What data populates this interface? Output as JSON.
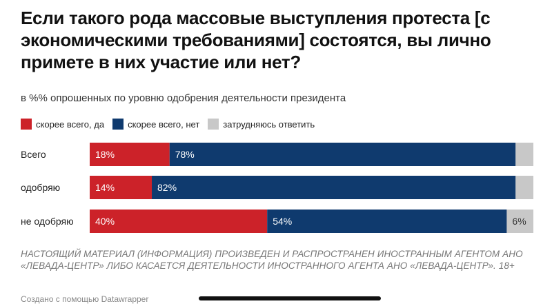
{
  "title": "Если такого рода массовые выступления протеста [с экономическими требованиями] состоятся, вы лично примете в них участие или нет?",
  "subtitle": "в %% опрошенных по уровню одобрения деятельности президента",
  "legend": [
    {
      "label": "скорее всего, да",
      "color": "#cc2229"
    },
    {
      "label": "скорее всего, нет",
      "color": "#0f3a6e"
    },
    {
      "label": "затрудняюсь ответить",
      "color": "#c8c8c8"
    }
  ],
  "chart_data": {
    "type": "bar",
    "stacked": true,
    "orientation": "horizontal",
    "categories": [
      "Всего",
      "одобряю",
      "не одобряю"
    ],
    "series": [
      {
        "name": "скорее всего, да",
        "color": "#cc2229",
        "values": [
          18,
          14,
          40
        ],
        "labels": [
          "18%",
          "14%",
          "40%"
        ]
      },
      {
        "name": "скорее всего, нет",
        "color": "#0f3a6e",
        "values": [
          78,
          82,
          54
        ],
        "labels": [
          "78%",
          "82%",
          "54%"
        ]
      },
      {
        "name": "затрудняюсь ответить",
        "color": "#c8c8c8",
        "values": [
          4,
          4,
          6
        ],
        "labels": [
          "",
          "",
          "6%"
        ]
      }
    ],
    "xlim": [
      0,
      100
    ],
    "grid": false,
    "legend_position": "top-left"
  },
  "note": "НАСТОЯЩИЙ МАТЕРИАЛ (ИНФОРМАЦИЯ) ПРОИЗВЕДЕН И РАСПРОСТРАНЕН ИНОСТРАННЫМ АГЕНТОМ АНО «ЛЕВАДА-ЦЕНТР» ЛИБО КАСАЕТСЯ ДЕЯТЕЛЬНОСТИ ИНОСТРАННОГО АГЕНТА АНО «ЛЕВАДА-ЦЕНТР». 18+",
  "credit": "Создано с помощью Datawrapper"
}
